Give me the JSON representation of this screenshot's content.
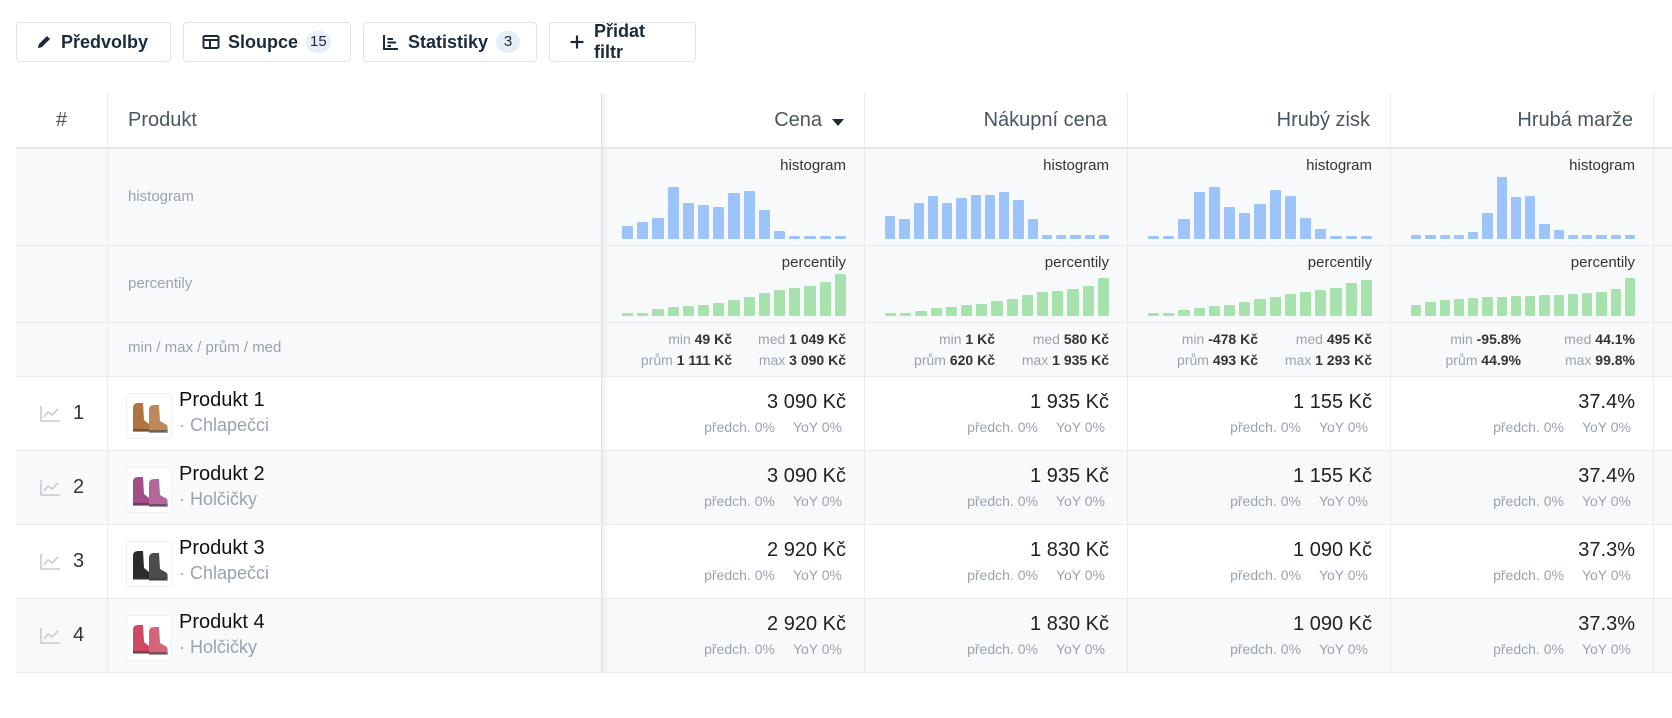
{
  "toolbar": {
    "presets": {
      "label": "Předvolby",
      "icon": "pencil-icon"
    },
    "columns": {
      "label": "Sloupce",
      "count": "15",
      "icon": "columns-icon"
    },
    "stats": {
      "label": "Statistiky",
      "count": "3",
      "icon": "bar-list-icon"
    },
    "add_filter": {
      "label": "Přidat filtr",
      "icon": "plus-icon"
    }
  },
  "header": {
    "index": "#",
    "product": "Produkt",
    "metrics": [
      "Cena",
      "Nákupní cena",
      "Hrubý zisk",
      "Hrubá marže"
    ],
    "sorted_column": "Cena"
  },
  "stats": {
    "histogram_label": "histogram",
    "percentile_label": "percentily",
    "summary_label": "min / max / prům / med",
    "histogram_tag": "histogram",
    "percentile_tag": "percentily",
    "summary_keys": {
      "min": "min",
      "med": "med",
      "avg": "prům",
      "max": "max"
    },
    "columns": [
      {
        "histogram": [
          0.25,
          0.32,
          0.4,
          1.0,
          0.7,
          0.66,
          0.62,
          0.88,
          0.92,
          0.55,
          0.15,
          0.06,
          0.06,
          0.06,
          0.06
        ],
        "percentiles": [
          0.05,
          0.08,
          0.16,
          0.22,
          0.24,
          0.26,
          0.32,
          0.38,
          0.46,
          0.55,
          0.62,
          0.66,
          0.72,
          0.8,
          1.0
        ],
        "min": "49 Kč",
        "med": "1 049 Kč",
        "avg": "1 111 Kč",
        "max": "3 090 Kč"
      },
      {
        "histogram": [
          0.45,
          0.38,
          0.7,
          0.82,
          0.7,
          0.78,
          0.84,
          0.85,
          0.9,
          0.75,
          0.38,
          0.08,
          0.08,
          0.08,
          0.08,
          0.08
        ],
        "percentiles": [
          0.05,
          0.08,
          0.14,
          0.2,
          0.24,
          0.28,
          0.32,
          0.4,
          0.46,
          0.56,
          0.62,
          0.66,
          0.72,
          0.8,
          1.0
        ],
        "min": "1 Kč",
        "med": "580 Kč",
        "avg": "620 Kč",
        "max": "1 935 Kč"
      },
      {
        "histogram": [
          0.06,
          0.06,
          0.38,
          0.9,
          1.0,
          0.62,
          0.5,
          0.68,
          0.94,
          0.82,
          0.4,
          0.2,
          0.06,
          0.06,
          0.06
        ],
        "percentiles": [
          0.05,
          0.08,
          0.16,
          0.22,
          0.26,
          0.3,
          0.36,
          0.44,
          0.5,
          0.58,
          0.64,
          0.68,
          0.74,
          0.88,
          0.94
        ],
        "min": "-478 Kč",
        "med": "495 Kč",
        "avg": "493 Kč",
        "max": "1 293 Kč"
      },
      {
        "histogram": [
          0.06,
          0.06,
          0.06,
          0.06,
          0.12,
          0.42,
          1.0,
          0.68,
          0.7,
          0.25,
          0.15,
          0.06,
          0.06,
          0.06,
          0.06,
          0.06
        ],
        "percentiles": [
          0.3,
          0.38,
          0.42,
          0.46,
          0.48,
          0.5,
          0.5,
          0.52,
          0.53,
          0.54,
          0.56,
          0.58,
          0.6,
          0.64,
          0.72,
          1.0
        ],
        "min": "-95.8%",
        "med": "44.1%",
        "avg": "44.9%",
        "max": "99.8%"
      }
    ]
  },
  "change_labels": {
    "prev": "předch. 0%",
    "yoy": "YoY 0%"
  },
  "rows": [
    {
      "index": "1",
      "name": "Produkt 1",
      "category": "· Chlapečci",
      "color": "#b07440",
      "values": [
        "3 090 Kč",
        "1 935 Kč",
        "1 155 Kč",
        "37.4%"
      ]
    },
    {
      "index": "2",
      "name": "Produkt 2",
      "category": "· Holčičky",
      "color": "#a34d8a",
      "values": [
        "3 090 Kč",
        "1 935 Kč",
        "1 155 Kč",
        "37.4%"
      ]
    },
    {
      "index": "3",
      "name": "Produkt 3",
      "category": "· Chlapečci",
      "color": "#2c2c2c",
      "values": [
        "2 920 Kč",
        "1 830 Kč",
        "1 090 Kč",
        "37.3%"
      ]
    },
    {
      "index": "4",
      "name": "Produkt 4",
      "category": "· Holčičky",
      "color": "#cc4a63",
      "values": [
        "2 920 Kč",
        "1 830 Kč",
        "1 090 Kč",
        "37.3%"
      ]
    }
  ]
}
